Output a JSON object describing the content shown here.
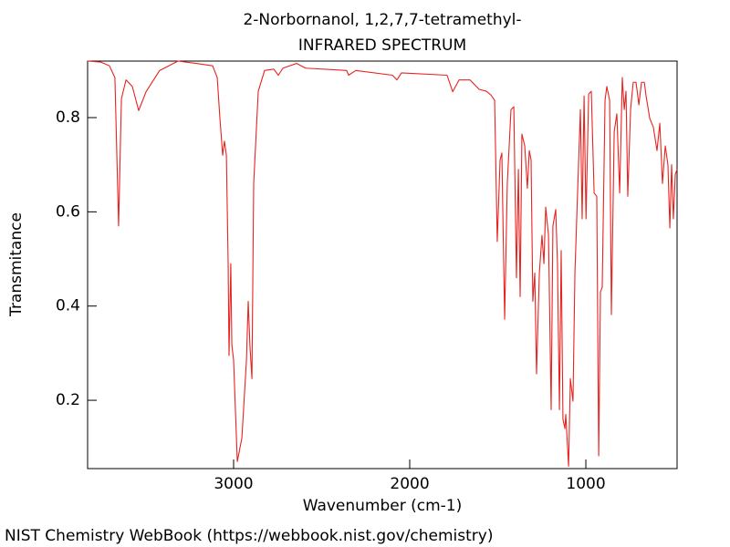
{
  "chart_data": {
    "type": "line",
    "title": "2-Norbornanol, 1,2,7,7-tetramethyl-",
    "subtitle": "INFRARED SPECTRUM",
    "x_label": "Wavenumber (cm-1)",
    "y_label": "Transmitance",
    "source": "NIST Chemistry WebBook (https://webbook.nist.gov/chemistry)",
    "color": "#e8231f",
    "xlim": [
      3829,
      482
    ],
    "ylim": [
      0.055,
      0.92
    ],
    "xticks": [
      3000,
      2000,
      1000
    ],
    "yticks": [
      0.2,
      0.4,
      0.6,
      0.8
    ],
    "x": [
      3829,
      3756,
      3705,
      3674,
      3653,
      3637,
      3611,
      3575,
      3539,
      3497,
      3420,
      3316,
      3212,
      3119,
      3093,
      3078,
      3062,
      3052,
      3041,
      3031,
      3026,
      3016,
      3010,
      3000,
      2979,
      2953,
      2927,
      2917,
      2907,
      2896,
      2886,
      2860,
      2824,
      2772,
      2746,
      2720,
      2642,
      2591,
      2358,
      2347,
      2306,
      2098,
      2073,
      2047,
      1788,
      1756,
      1720,
      1658,
      1606,
      1565,
      1539,
      1518,
      1503,
      1487,
      1477,
      1461,
      1446,
      1425,
      1409,
      1394,
      1383,
      1373,
      1363,
      1347,
      1332,
      1321,
      1311,
      1301,
      1290,
      1280,
      1264,
      1249,
      1238,
      1228,
      1212,
      1197,
      1187,
      1171,
      1161,
      1150,
      1140,
      1130,
      1119,
      1114,
      1098,
      1088,
      1073,
      1062,
      1047,
      1031,
      1021,
      1010,
      999,
      984,
      969,
      953,
      938,
      927,
      917,
      907,
      891,
      881,
      865,
      855,
      839,
      824,
      808,
      793,
      782,
      772,
      762,
      746,
      731,
      715,
      699,
      684,
      668,
      658,
      637,
      617,
      596,
      580,
      565,
      549,
      534,
      523,
      513,
      503,
      492,
      482
    ],
    "values": [
      0.92,
      0.918,
      0.91,
      0.885,
      0.57,
      0.84,
      0.88,
      0.866,
      0.815,
      0.855,
      0.9,
      0.92,
      0.915,
      0.91,
      0.885,
      0.8,
      0.72,
      0.75,
      0.72,
      0.49,
      0.295,
      0.49,
      0.318,
      0.285,
      0.07,
      0.12,
      0.285,
      0.41,
      0.314,
      0.246,
      0.66,
      0.856,
      0.9,
      0.903,
      0.89,
      0.905,
      0.915,
      0.905,
      0.9,
      0.89,
      0.9,
      0.89,
      0.88,
      0.895,
      0.89,
      0.855,
      0.88,
      0.88,
      0.86,
      0.856,
      0.848,
      0.837,
      0.537,
      0.71,
      0.725,
      0.372,
      0.66,
      0.817,
      0.823,
      0.46,
      0.69,
      0.42,
      0.765,
      0.74,
      0.65,
      0.73,
      0.71,
      0.41,
      0.47,
      0.256,
      0.47,
      0.55,
      0.49,
      0.61,
      0.55,
      0.18,
      0.57,
      0.605,
      0.49,
      0.18,
      0.518,
      0.16,
      0.14,
      0.17,
      0.06,
      0.246,
      0.198,
      0.47,
      0.64,
      0.817,
      0.585,
      0.846,
      0.585,
      0.85,
      0.856,
      0.64,
      0.633,
      0.082,
      0.43,
      0.44,
      0.837,
      0.866,
      0.837,
      0.382,
      0.77,
      0.808,
      0.64,
      0.885,
      0.817,
      0.856,
      0.633,
      0.817,
      0.875,
      0.875,
      0.827,
      0.875,
      0.875,
      0.846,
      0.798,
      0.78,
      0.73,
      0.788,
      0.66,
      0.74,
      0.7,
      0.566,
      0.7,
      0.585,
      0.68,
      0.69
    ]
  }
}
